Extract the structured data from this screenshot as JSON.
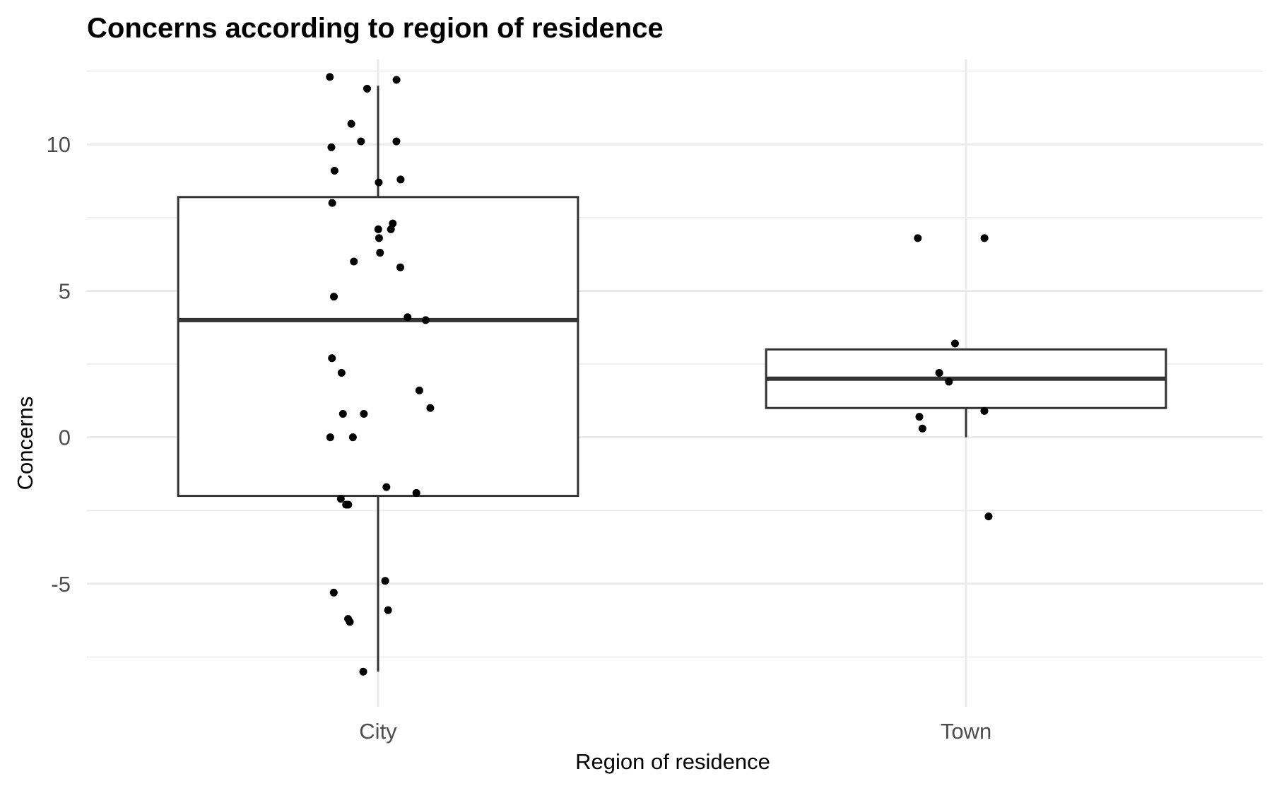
{
  "chart_data": {
    "type": "boxplot",
    "title": "Concerns according to region of residence",
    "xlabel": "Region of residence",
    "ylabel": "Concerns",
    "categories": [
      "City",
      "Town"
    ],
    "ylim": [
      -9.2,
      12.9
    ],
    "yticks": [
      -5,
      0,
      5,
      10
    ],
    "grid": true,
    "boxes": [
      {
        "category": "City",
        "q1": -2,
        "median": 4,
        "q3": 8.2,
        "whisker_low": -8,
        "whisker_high": 12
      },
      {
        "category": "Town",
        "q1": 1,
        "median": 2,
        "q3": 3,
        "whisker_low": 0,
        "whisker_high": 3
      }
    ],
    "points": [
      {
        "category": "City",
        "values": [
          12.3,
          12.2,
          11.9,
          10.7,
          10.1,
          10.1,
          9.9,
          9.1,
          8.8,
          8.7,
          8.0,
          7.3,
          7.1,
          7.1,
          6.8,
          6.3,
          6.0,
          5.8,
          4.8,
          4.1,
          4.0,
          2.7,
          2.2,
          1.6,
          1.0,
          0.8,
          0.8,
          0.0,
          0.0,
          -1.7,
          -1.9,
          -2.1,
          -2.3,
          -2.3,
          -4.9,
          -5.3,
          -5.9,
          -6.2,
          -6.3,
          -8.0
        ]
      },
      {
        "category": "Town",
        "values": [
          6.8,
          6.8,
          3.2,
          2.2,
          1.9,
          0.9,
          0.7,
          0.3,
          -2.7
        ]
      }
    ]
  }
}
